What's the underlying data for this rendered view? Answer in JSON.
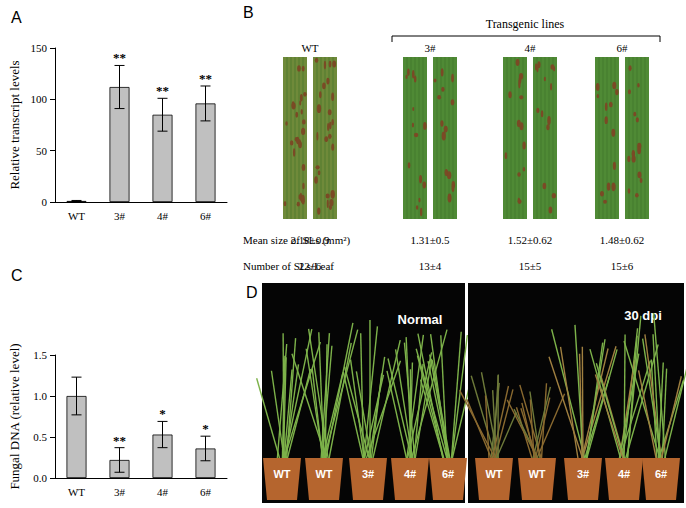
{
  "chart_data": [
    {
      "type": "bar",
      "title": "A",
      "y_label": "Relative transcript levels",
      "categories": [
        "WT",
        "3#",
        "4#",
        "6#"
      ],
      "values": [
        1,
        112,
        85,
        96
      ],
      "errors": [
        0.5,
        21,
        16,
        17
      ],
      "annotations": [
        null,
        "**",
        "**",
        "**"
      ],
      "color": "#c0c0c0",
      "ylim": [
        0,
        150
      ],
      "yticks": [
        0,
        50,
        100,
        150
      ],
      "grid": false
    },
    {
      "type": "bar",
      "title": "C",
      "y_label": "Fungal DNA (relative level)",
      "categories": [
        "WT",
        "3#",
        "4#",
        "6#"
      ],
      "values": [
        1.0,
        0.22,
        0.53,
        0.36
      ],
      "errors": [
        0.23,
        0.15,
        0.16,
        0.15
      ],
      "annotations": [
        null,
        "**",
        "*",
        "*"
      ],
      "color": "#c0c0c0",
      "ylim": [
        0,
        1.5
      ],
      "yticks": [
        {
          "value": 0,
          "label": "0.0"
        },
        {
          "value": 0.5,
          "label": "0.5"
        },
        {
          "value": 1,
          "label": "1.0"
        },
        {
          "value": 1.5,
          "label": "1.5"
        }
      ],
      "grid": false
    }
  ],
  "figure_panels": {
    "B": {
      "title": "B",
      "header": "Transgenic lines",
      "columns": [
        "WT",
        "3#",
        "4#",
        "6#"
      ],
      "rows": [
        {
          "label": "Mean size of SLs (mm²)",
          "values": [
            "2.18±0.9",
            "1.31±0.5",
            "1.52±0.62",
            "1.48±0.62"
          ]
        },
        {
          "label": "Number of SLs/Leaf",
          "values": [
            "22±6",
            "13±4",
            "15±5",
            "15±6"
          ]
        }
      ]
    },
    "D": {
      "title": "D",
      "photos": [
        {
          "label": "Normal",
          "plants": [
            "WT",
            "WT",
            "3#",
            "4#",
            "6#"
          ]
        },
        {
          "label": "30 dpi",
          "plants": [
            "WT",
            "WT",
            "3#",
            "4#",
            "6#"
          ]
        }
      ]
    }
  }
}
